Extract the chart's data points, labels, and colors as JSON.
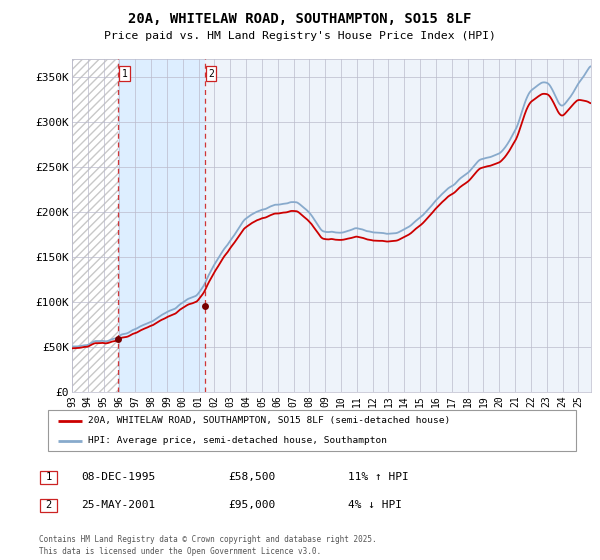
{
  "title": "20A, WHITELAW ROAD, SOUTHAMPTON, SO15 8LF",
  "subtitle": "Price paid vs. HM Land Registry's House Price Index (HPI)",
  "ylim": [
    0,
    370000
  ],
  "xlim_start": 1993.0,
  "xlim_end": 2025.8,
  "yticks": [
    0,
    50000,
    100000,
    150000,
    200000,
    250000,
    300000,
    350000
  ],
  "ytick_labels": [
    "£0",
    "£50K",
    "£100K",
    "£150K",
    "£200K",
    "£250K",
    "£300K",
    "£350K"
  ],
  "purchase_dates": [
    1995.93,
    2001.4
  ],
  "purchase_prices": [
    58500,
    95000
  ],
  "purchase_labels": [
    "1",
    "2"
  ],
  "hpi_color": "#88aacc",
  "price_color": "#cc0000",
  "dot_color": "#770000",
  "shaded_color": "#ddeeff",
  "legend_entries": [
    "20A, WHITELAW ROAD, SOUTHAMPTON, SO15 8LF (semi-detached house)",
    "HPI: Average price, semi-detached house, Southampton"
  ],
  "legend_colors": [
    "#cc0000",
    "#88aacc"
  ],
  "table_rows": [
    [
      "1",
      "08-DEC-1995",
      "£58,500",
      "11% ↑ HPI"
    ],
    [
      "2",
      "25-MAY-2001",
      "£95,000",
      "4% ↓ HPI"
    ]
  ],
  "footnote": "Contains HM Land Registry data © Crown copyright and database right 2025.\nThis data is licensed under the Open Government Licence v3.0.",
  "bg_color": "#ffffff",
  "plot_bg_color": "#eef3fa",
  "grid_color": "#bbbbcc"
}
